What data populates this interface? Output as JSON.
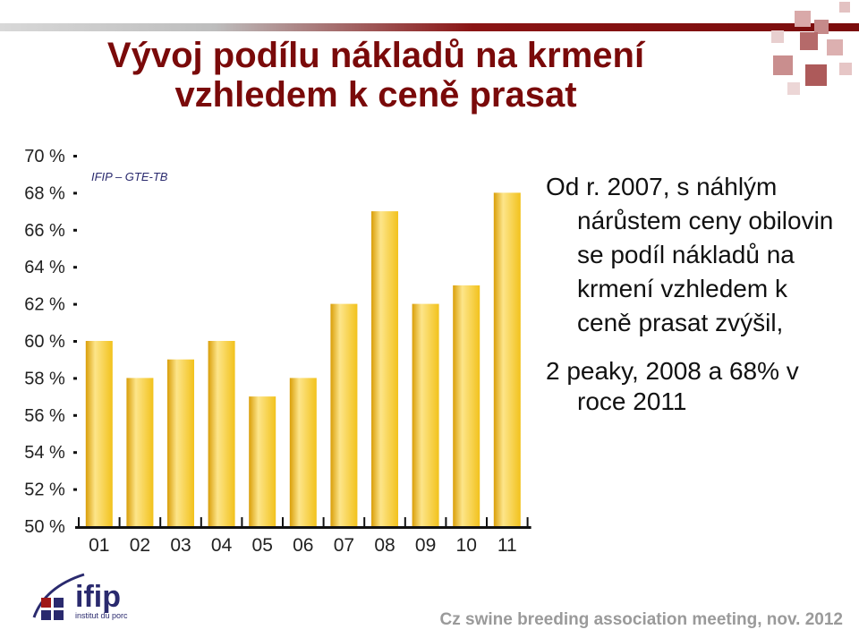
{
  "title": {
    "line1": "Vývoj podílu nákladů na krmení",
    "line2": "vzhledem k ceně prasat"
  },
  "source_label": "IFIP – GTE-TB",
  "text": {
    "para1": "Od r. 2007, s náhlým nárůstem ceny obilovin se podíl nákladů na krmení vzhledem k ceně prasat zvýšil,",
    "para2": "2 peaky, 2008 a 68% v roce 2011"
  },
  "logo_text": {
    "name": "ifip",
    "subtitle": "institut du porc"
  },
  "footer": "Cz swine breeding association meeting, nov. 2012",
  "colors": {
    "title": "#7a0a0a",
    "bar": "#f2c21c",
    "bar_light": "#fde58a",
    "bar_dark": "#d99e08",
    "logo": "#2a2a6e",
    "footer": "#9a9a9a"
  },
  "chart_data": {
    "type": "bar",
    "categories": [
      "01",
      "02",
      "03",
      "04",
      "05",
      "06",
      "07",
      "08",
      "09",
      "10",
      "11"
    ],
    "values": [
      60,
      58,
      59,
      60,
      57,
      58,
      62,
      67,
      62,
      63,
      68
    ],
    "yticks": [
      "50 %",
      "52 %",
      "54 %",
      "56 %",
      "58 %",
      "60 %",
      "62 %",
      "64 %",
      "66 %",
      "68 %",
      "70 %"
    ],
    "ylim": [
      50,
      70
    ],
    "title": "",
    "xlabel": "",
    "ylabel": "",
    "grid": false,
    "legend": "none"
  }
}
